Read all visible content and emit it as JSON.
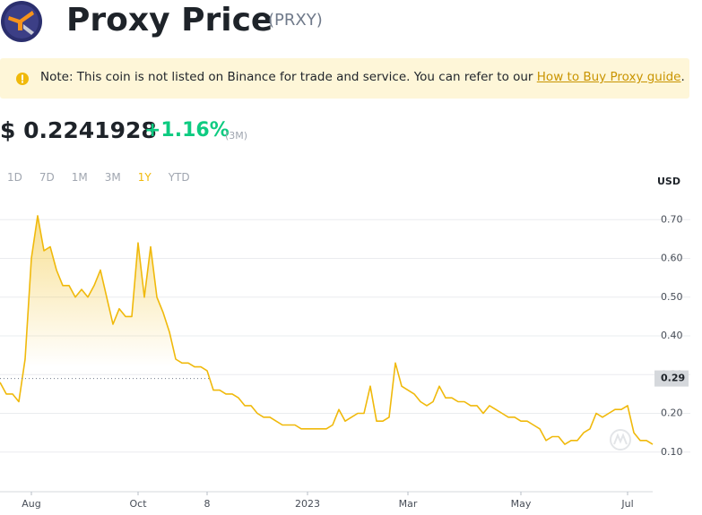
{
  "header": {
    "name": "Proxy Price",
    "symbol": "(PRXY)"
  },
  "note": {
    "text": "Note: This coin is not listed on Binance for trade and service. You can refer to our ",
    "link": "How to Buy Proxy guide",
    "end": "."
  },
  "price": {
    "value": "$ 0.2241928",
    "change": "+1.16%",
    "period": "(3M)"
  },
  "tabs": [
    "1D",
    "7D",
    "1M",
    "3M",
    "1Y",
    "YTD"
  ],
  "active_tab": 4,
  "chart_data": {
    "type": "line",
    "color": "#f0b90b",
    "y_unit": "USD",
    "values": [
      0.28,
      0.25,
      0.25,
      0.23,
      0.34,
      0.6,
      0.71,
      0.62,
      0.63,
      0.57,
      0.53,
      0.53,
      0.5,
      0.52,
      0.5,
      0.53,
      0.57,
      0.5,
      0.43,
      0.47,
      0.45,
      0.45,
      0.64,
      0.5,
      0.63,
      0.5,
      0.46,
      0.41,
      0.34,
      0.33,
      0.33,
      0.32,
      0.32,
      0.31,
      0.26,
      0.26,
      0.25,
      0.25,
      0.24,
      0.22,
      0.22,
      0.2,
      0.19,
      0.19,
      0.18,
      0.17,
      0.17,
      0.17,
      0.16,
      0.16,
      0.16,
      0.16,
      0.16,
      0.17,
      0.21,
      0.18,
      0.19,
      0.2,
      0.2,
      0.27,
      0.18,
      0.18,
      0.19,
      0.33,
      0.27,
      0.26,
      0.25,
      0.23,
      0.22,
      0.23,
      0.27,
      0.24,
      0.24,
      0.23,
      0.23,
      0.22,
      0.22,
      0.2,
      0.22,
      0.21,
      0.2,
      0.19,
      0.19,
      0.18,
      0.18,
      0.17,
      0.16,
      0.13,
      0.14,
      0.14,
      0.12,
      0.13,
      0.13,
      0.15,
      0.16,
      0.2,
      0.19,
      0.2,
      0.21,
      0.21,
      0.22,
      0.15,
      0.13,
      0.13,
      0.12
    ],
    "xlim": [
      0,
      104
    ],
    "xticks": [
      {
        "value": 5,
        "label": "Aug"
      },
      {
        "value": 22,
        "label": "Oct"
      },
      {
        "value": 33,
        "label": "8"
      },
      {
        "value": 49,
        "label": "2023"
      },
      {
        "value": 65,
        "label": "Mar"
      },
      {
        "value": 83,
        "label": "May"
      },
      {
        "value": 100,
        "label": "Jul"
      }
    ],
    "ylim": [
      0,
      0.77
    ],
    "yticks": [
      {
        "value": 0.1,
        "label": "0.10"
      },
      {
        "value": 0.2,
        "label": "0.20"
      },
      {
        "value": 0.3,
        "label": "0.30"
      },
      {
        "value": 0.4,
        "label": "0.40"
      },
      {
        "value": 0.5,
        "label": "0.50"
      },
      {
        "value": 0.6,
        "label": "0.60"
      },
      {
        "value": 0.7,
        "label": "0.70"
      }
    ],
    "grid": true,
    "current_value": 0.29
  }
}
